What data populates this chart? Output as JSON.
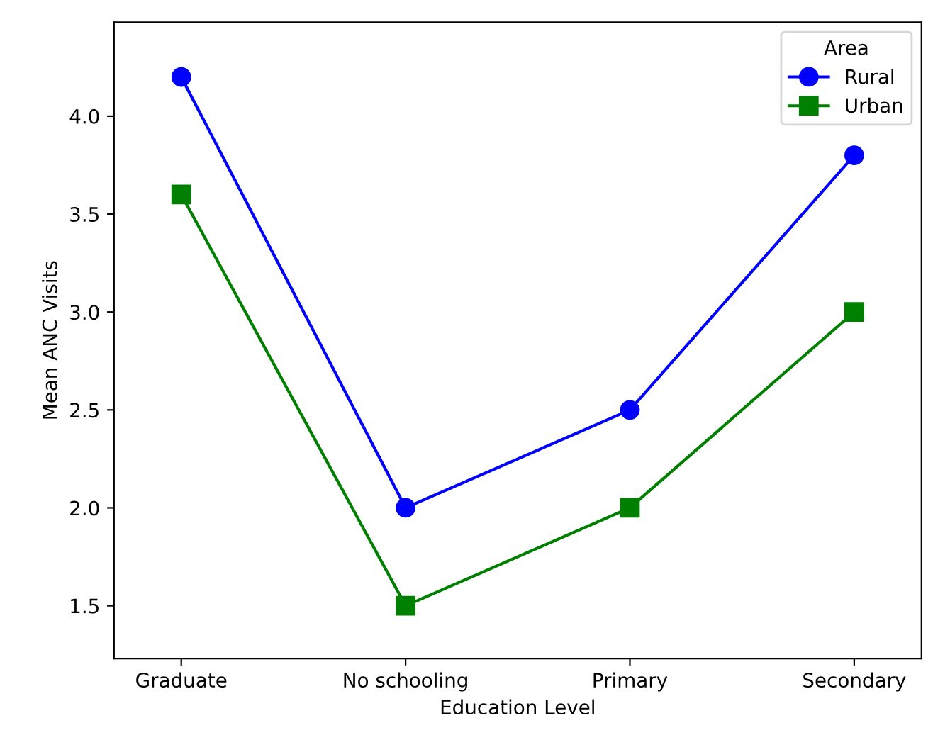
{
  "chart_data": {
    "type": "line",
    "xlabel": "Education Level",
    "ylabel": "Mean ANC Visits",
    "legend_title": "Area",
    "categories": [
      "Graduate",
      "No schooling",
      "Primary",
      "Secondary"
    ],
    "series": [
      {
        "name": "Rural",
        "color": "#0000ff",
        "marker": "circle",
        "values": [
          4.2,
          2.0,
          2.5,
          3.8
        ]
      },
      {
        "name": "Urban",
        "color": "#008000",
        "marker": "square",
        "values": [
          3.6,
          1.5,
          2.0,
          3.0
        ]
      }
    ],
    "ylim": [
      1.23,
      4.48
    ],
    "yticks": [
      1.5,
      {
        "value": 2,
        "label": "2.0"
      },
      2.5,
      {
        "value": 3,
        "label": "3.0"
      },
      3.5,
      {
        "value": 4,
        "label": "4.0"
      }
    ],
    "legend": "top right",
    "grid": false,
    "line_style": "solid"
  }
}
